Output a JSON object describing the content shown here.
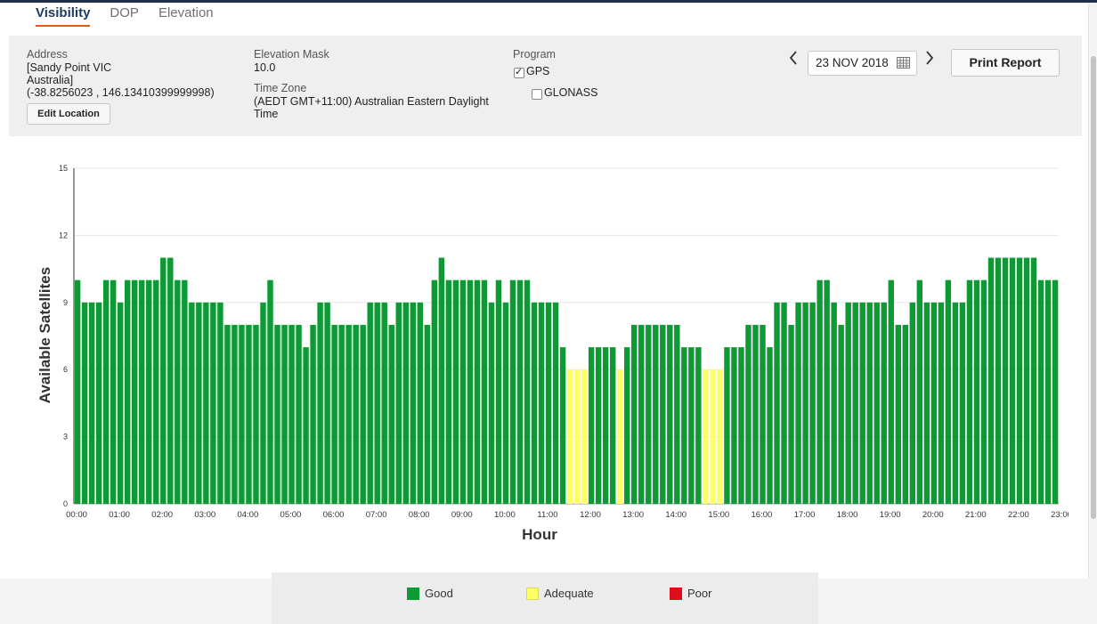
{
  "tabs": [
    {
      "label": "Visibility",
      "active": true
    },
    {
      "label": "DOP",
      "active": false
    },
    {
      "label": "Elevation",
      "active": false
    }
  ],
  "settings": {
    "address_label": "Address",
    "address_line1": "[Sandy Point VIC",
    "address_line2": "Australia]",
    "address_line3": "(-38.8256023 , 146.13410399999998)",
    "edit_location_label": "Edit Location",
    "elevation_mask_label": "Elevation Mask",
    "elevation_mask_value": "10.0",
    "time_zone_label": "Time Zone",
    "time_zone_line1": "(AEDT GMT+11:00) Australian Eastern Daylight",
    "time_zone_line2": "Time",
    "program_label": "Program",
    "programs": [
      {
        "label": "GPS",
        "checked": true
      },
      {
        "label": "GLONASS",
        "checked": false
      }
    ]
  },
  "date_nav": {
    "prev_icon": "chevron-left-icon",
    "date_value": "23 NOV 2018",
    "calendar_icon": "calendar-icon",
    "next_icon": "chevron-right-icon"
  },
  "print_report_label": "Print Report",
  "colors": {
    "good": "#0d9a34",
    "adequate": "#ffff66",
    "poor": "#dd0d1c",
    "tab_underline": "#e05a1a",
    "tab_active_text": "#1e3a5f"
  },
  "chart_data": {
    "type": "bar",
    "xlabel": "Hour",
    "ylabel": "Available Satellites",
    "ylim": [
      0,
      15
    ],
    "yticks": [
      0,
      3,
      6,
      9,
      12,
      15
    ],
    "grid": true,
    "x_tick_labels": [
      "00:00",
      "01:00",
      "02:00",
      "03:00",
      "04:00",
      "05:00",
      "06:00",
      "07:00",
      "08:00",
      "09:00",
      "10:00",
      "11:00",
      "12:00",
      "13:00",
      "14:00",
      "15:00",
      "16:00",
      "17:00",
      "18:00",
      "19:00",
      "20:00",
      "21:00",
      "22:00",
      "23:00"
    ],
    "bars_per_hour": 6,
    "values": [
      10,
      9,
      9,
      9,
      10,
      10,
      9,
      10,
      10,
      10,
      10,
      10,
      11,
      11,
      10,
      10,
      9,
      9,
      9,
      9,
      9,
      8,
      8,
      8,
      8,
      8,
      9,
      10,
      8,
      8,
      8,
      8,
      7,
      8,
      9,
      9,
      8,
      8,
      8,
      8,
      8,
      9,
      9,
      9,
      8,
      9,
      9,
      9,
      9,
      8,
      10,
      11,
      10,
      10,
      10,
      10,
      10,
      10,
      9,
      10,
      9,
      10,
      10,
      10,
      9,
      9,
      9,
      9,
      7,
      6,
      6,
      6,
      7,
      7,
      7,
      7,
      6,
      7,
      8,
      8,
      8,
      8,
      8,
      8,
      8,
      7,
      7,
      7,
      6,
      6,
      6,
      7,
      7,
      7,
      8,
      8,
      8,
      7,
      9,
      9,
      8,
      9,
      9,
      9,
      10,
      10,
      9,
      8,
      9,
      9,
      9,
      9,
      9,
      9,
      10,
      8,
      8,
      9,
      10,
      9,
      9,
      9,
      10,
      9,
      9,
      10,
      10,
      10,
      11,
      11,
      11,
      11,
      11,
      11,
      11,
      10,
      10,
      10
    ],
    "status": [
      "G",
      "G",
      "G",
      "G",
      "G",
      "G",
      "G",
      "G",
      "G",
      "G",
      "G",
      "G",
      "G",
      "G",
      "G",
      "G",
      "G",
      "G",
      "G",
      "G",
      "G",
      "G",
      "G",
      "G",
      "G",
      "G",
      "G",
      "G",
      "G",
      "G",
      "G",
      "G",
      "G",
      "G",
      "G",
      "G",
      "G",
      "G",
      "G",
      "G",
      "G",
      "G",
      "G",
      "G",
      "G",
      "G",
      "G",
      "G",
      "G",
      "G",
      "G",
      "G",
      "G",
      "G",
      "G",
      "G",
      "G",
      "G",
      "G",
      "G",
      "G",
      "G",
      "G",
      "G",
      "G",
      "G",
      "G",
      "G",
      "G",
      "A",
      "A",
      "A",
      "G",
      "G",
      "G",
      "G",
      "A",
      "G",
      "G",
      "G",
      "G",
      "G",
      "G",
      "G",
      "G",
      "G",
      "G",
      "G",
      "A",
      "A",
      "A",
      "G",
      "G",
      "G",
      "G",
      "G",
      "G",
      "G",
      "G",
      "G",
      "G",
      "G",
      "G",
      "G",
      "G",
      "G",
      "G",
      "G",
      "G",
      "G",
      "G",
      "G",
      "G",
      "G",
      "G",
      "G",
      "G",
      "G",
      "G",
      "G",
      "G",
      "G",
      "G",
      "G",
      "G",
      "G",
      "G",
      "G",
      "G",
      "G",
      "G",
      "G",
      "G",
      "G",
      "G",
      "G",
      "G",
      "G"
    ],
    "legend": [
      {
        "label": "Good",
        "color": "#0d9a34"
      },
      {
        "label": "Adequate",
        "color": "#ffff66"
      },
      {
        "label": "Poor",
        "color": "#dd0d1c"
      }
    ]
  }
}
